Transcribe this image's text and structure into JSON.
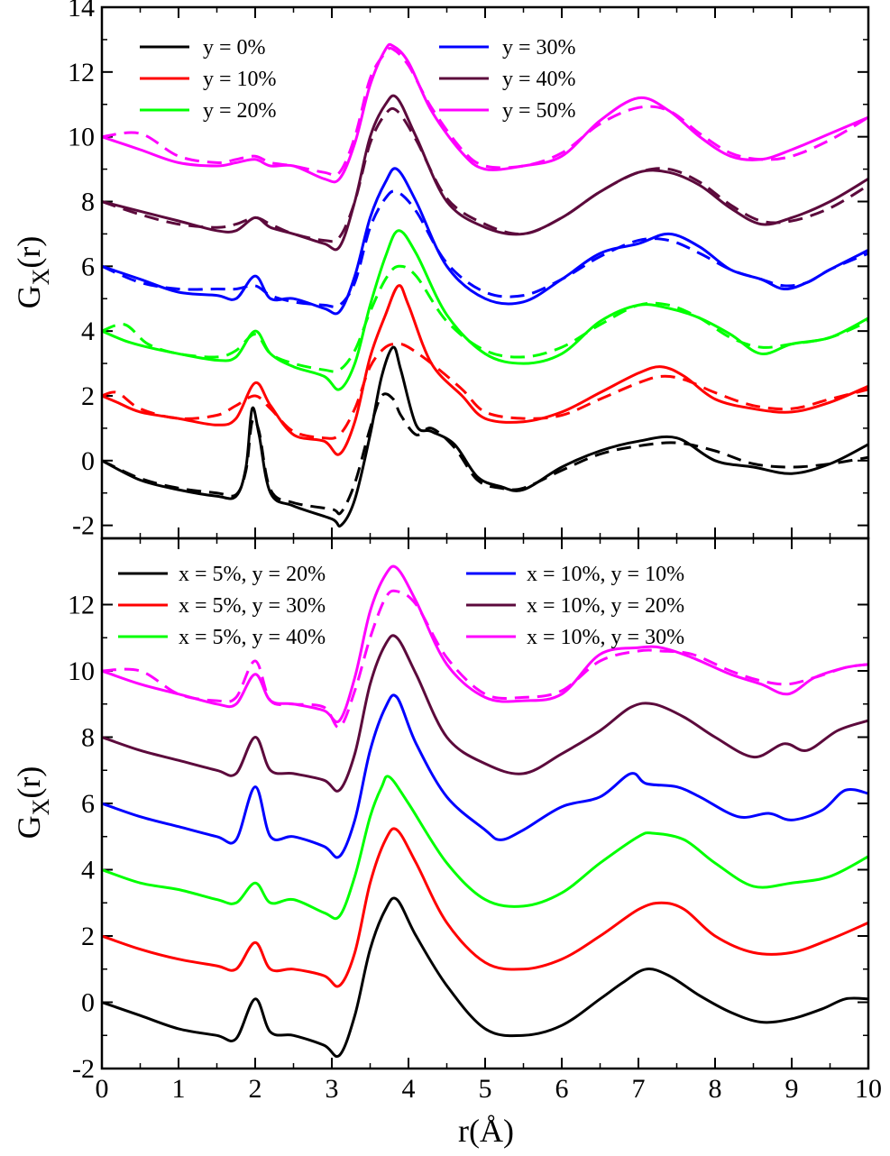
{
  "chart_data": [
    {
      "type": "line",
      "xlabel": "",
      "ylabel": "G_X(r)",
      "ylabel_main": "G",
      "ylabel_sub": "X",
      "ylabel_tail": "(r)",
      "xlim": [
        0,
        10
      ],
      "ylim": [
        -2.4,
        14
      ],
      "yticks": [
        "-2",
        "0",
        "2",
        "4",
        "6",
        "8",
        "10",
        "12",
        "14"
      ],
      "grid": false,
      "legend_position": "top",
      "line_styles": [
        "solid",
        "dashed"
      ],
      "series": [
        {
          "name": "y = 0%",
          "color": "#000000",
          "x": [
            0,
            0.5,
            1.0,
            1.5,
            1.75,
            1.88,
            1.96,
            2.05,
            2.2,
            2.5,
            3.0,
            3.12,
            3.3,
            3.5,
            3.65,
            3.8,
            3.9,
            4.1,
            4.3,
            4.6,
            4.9,
            5.2,
            5.5,
            6.0,
            6.5,
            7.0,
            7.5,
            8.0,
            8.5,
            9.0,
            9.5,
            10.0
          ],
          "y": [
            0,
            -0.6,
            -0.9,
            -1.1,
            -1.1,
            -0.2,
            1.6,
            0.8,
            -1.0,
            -1.4,
            -1.8,
            -2.0,
            -1.2,
            0.8,
            2.6,
            3.5,
            2.8,
            1.1,
            0.9,
            0.5,
            -0.5,
            -0.8,
            -0.9,
            -0.2,
            0.3,
            0.6,
            0.7,
            0.0,
            -0.2,
            -0.4,
            -0.1,
            0.5
          ],
          "fit_y": [
            0,
            -0.55,
            -0.85,
            -1.0,
            -1.05,
            -0.3,
            1.2,
            0.9,
            -0.9,
            -1.3,
            -1.5,
            -1.6,
            -0.7,
            1.0,
            2.0,
            1.9,
            1.4,
            0.8,
            1.0,
            0.4,
            -0.6,
            -0.85,
            -0.85,
            -0.3,
            0.2,
            0.45,
            0.55,
            0.3,
            -0.1,
            -0.2,
            -0.1,
            0.1
          ]
        },
        {
          "name": "y = 10%",
          "color": "#ff0000",
          "x": [
            0,
            0.2,
            0.5,
            1.0,
            1.5,
            1.75,
            2.0,
            2.2,
            2.5,
            2.9,
            3.1,
            3.3,
            3.5,
            3.7,
            3.87,
            4.0,
            4.3,
            4.7,
            5.0,
            5.5,
            6.0,
            6.5,
            7.0,
            7.3,
            7.6,
            8.0,
            8.5,
            9.0,
            9.5,
            10.0
          ],
          "y": [
            2.0,
            1.8,
            1.5,
            1.3,
            1.1,
            1.3,
            2.4,
            1.7,
            0.8,
            0.6,
            0.2,
            1.2,
            3.2,
            4.5,
            5.4,
            4.8,
            3.0,
            2.0,
            1.3,
            1.2,
            1.5,
            2.1,
            2.7,
            2.9,
            2.6,
            1.9,
            1.6,
            1.5,
            1.8,
            2.3
          ],
          "fit_y": [
            2.0,
            2.1,
            1.6,
            1.3,
            1.4,
            1.7,
            2.0,
            1.6,
            0.9,
            0.7,
            0.8,
            1.6,
            2.9,
            3.5,
            3.6,
            3.5,
            3.0,
            2.2,
            1.5,
            1.3,
            1.4,
            1.9,
            2.4,
            2.6,
            2.5,
            2.1,
            1.7,
            1.6,
            1.9,
            2.2
          ]
        },
        {
          "name": "y = 20%",
          "color": "#00ff00",
          "x": [
            0,
            0.3,
            0.6,
            1.0,
            1.5,
            1.75,
            2.0,
            2.2,
            2.5,
            2.9,
            3.1,
            3.3,
            3.5,
            3.7,
            3.87,
            4.1,
            4.5,
            5.0,
            5.5,
            6.0,
            6.5,
            7.0,
            7.4,
            7.8,
            8.2,
            8.6,
            9.0,
            9.5,
            10.0
          ],
          "y": [
            4.0,
            3.7,
            3.5,
            3.3,
            3.1,
            3.2,
            4.0,
            3.3,
            2.9,
            2.6,
            2.2,
            3.0,
            4.8,
            6.3,
            7.1,
            6.4,
            4.5,
            3.3,
            3.0,
            3.3,
            4.3,
            4.8,
            4.7,
            4.4,
            3.9,
            3.3,
            3.6,
            3.8,
            4.4
          ],
          "fit_y": [
            4.0,
            4.2,
            3.6,
            3.3,
            3.2,
            3.4,
            3.9,
            3.3,
            3.0,
            2.8,
            2.8,
            3.4,
            4.6,
            5.6,
            6.0,
            5.7,
            4.3,
            3.4,
            3.2,
            3.5,
            4.2,
            4.8,
            4.8,
            4.4,
            3.8,
            3.5,
            3.6,
            3.8,
            4.3
          ]
        },
        {
          "name": "y = 30%",
          "color": "#0000ff",
          "x": [
            0,
            0.5,
            1.0,
            1.5,
            1.75,
            2.0,
            2.2,
            2.5,
            2.9,
            3.1,
            3.3,
            3.5,
            3.7,
            3.85,
            4.1,
            4.5,
            5.0,
            5.5,
            6.0,
            6.5,
            7.0,
            7.4,
            7.8,
            8.2,
            8.6,
            8.9,
            9.2,
            9.5,
            10.0
          ],
          "y": [
            6.0,
            5.6,
            5.2,
            5.1,
            5.0,
            5.7,
            5.0,
            5.0,
            4.7,
            4.6,
            5.7,
            7.5,
            8.6,
            9.0,
            8.0,
            6.0,
            5.0,
            4.9,
            5.6,
            6.4,
            6.7,
            7.0,
            6.6,
            5.9,
            5.6,
            5.3,
            5.5,
            5.9,
            6.5
          ],
          "fit_y": [
            6.0,
            5.5,
            5.3,
            5.3,
            5.3,
            5.4,
            5.1,
            4.9,
            4.8,
            4.8,
            5.5,
            7.2,
            8.1,
            8.3,
            7.7,
            6.1,
            5.2,
            5.1,
            5.6,
            6.3,
            6.8,
            6.8,
            6.4,
            5.9,
            5.6,
            5.4,
            5.5,
            5.9,
            6.4
          ]
        },
        {
          "name": "y = 40%",
          "color": "#5c0a3c",
          "x": [
            0,
            0.5,
            1.0,
            1.5,
            1.75,
            2.0,
            2.2,
            2.5,
            2.9,
            3.1,
            3.3,
            3.5,
            3.7,
            3.85,
            4.1,
            4.5,
            5.0,
            5.5,
            6.0,
            6.5,
            7.0,
            7.4,
            7.8,
            8.2,
            8.6,
            9.0,
            9.5,
            10.0
          ],
          "y": [
            8.0,
            7.7,
            7.4,
            7.1,
            7.1,
            7.5,
            7.2,
            7.0,
            6.7,
            6.6,
            8.0,
            10.0,
            11.0,
            11.2,
            10.0,
            8.0,
            7.2,
            7.0,
            7.5,
            8.3,
            8.9,
            8.9,
            8.5,
            7.8,
            7.3,
            7.5,
            8.0,
            8.7
          ],
          "fit_y": [
            8.0,
            7.6,
            7.3,
            7.2,
            7.3,
            7.5,
            7.3,
            7.0,
            6.8,
            6.9,
            8.0,
            9.8,
            10.7,
            10.8,
            9.9,
            8.1,
            7.3,
            7.0,
            7.5,
            8.3,
            8.9,
            9.0,
            8.6,
            7.9,
            7.4,
            7.4,
            7.8,
            8.5
          ]
        },
        {
          "name": "y = 50%",
          "color": "#ff00ff",
          "x": [
            0,
            0.5,
            1.0,
            1.5,
            1.75,
            2.0,
            2.2,
            2.5,
            2.9,
            3.1,
            3.3,
            3.5,
            3.7,
            3.8,
            4.0,
            4.3,
            4.7,
            5.0,
            5.5,
            6.0,
            6.5,
            7.0,
            7.4,
            7.8,
            8.2,
            8.6,
            9.0,
            9.5,
            10.0
          ],
          "y": [
            10.0,
            9.6,
            9.2,
            9.1,
            9.2,
            9.3,
            9.1,
            9.1,
            8.7,
            8.7,
            9.8,
            11.6,
            12.7,
            12.8,
            12.3,
            10.8,
            9.5,
            9.0,
            9.1,
            9.4,
            10.5,
            11.2,
            10.8,
            10.0,
            9.4,
            9.3,
            9.6,
            10.1,
            10.6
          ],
          "fit_y": [
            10.0,
            10.1,
            9.4,
            9.2,
            9.3,
            9.4,
            9.2,
            9.1,
            8.9,
            8.9,
            10.0,
            11.8,
            12.6,
            12.7,
            12.2,
            10.9,
            9.6,
            9.1,
            9.1,
            9.5,
            10.4,
            10.9,
            10.8,
            10.1,
            9.5,
            9.3,
            9.4,
            9.9,
            10.6
          ]
        }
      ]
    },
    {
      "type": "line",
      "xlabel": "r(Å)",
      "ylabel": "G_X(r)",
      "ylabel_main": "G",
      "ylabel_sub": "X",
      "ylabel_tail": "(r)",
      "xlim": [
        0,
        10
      ],
      "ylim": [
        -2,
        14
      ],
      "yticks": [
        "-2",
        "0",
        "2",
        "4",
        "6",
        "8",
        "10",
        "12"
      ],
      "xticks": [
        "0",
        "1",
        "2",
        "3",
        "4",
        "5",
        "6",
        "7",
        "8",
        "9",
        "10"
      ],
      "grid": false,
      "legend_position": "top",
      "series": [
        {
          "name": "x = 5%, y = 20%",
          "color": "#000000",
          "x": [
            0,
            0.5,
            1.0,
            1.5,
            1.75,
            2.0,
            2.2,
            2.5,
            2.9,
            3.1,
            3.3,
            3.5,
            3.7,
            3.85,
            4.1,
            4.5,
            5.0,
            5.5,
            6.0,
            6.5,
            6.8,
            7.1,
            7.4,
            7.8,
            8.2,
            8.6,
            9.0,
            9.4,
            9.7,
            10.0
          ],
          "y": [
            0.0,
            -0.4,
            -0.8,
            -1.0,
            -1.1,
            0.1,
            -0.9,
            -1.0,
            -1.3,
            -1.6,
            -0.4,
            1.6,
            2.8,
            3.1,
            2.0,
            0.5,
            -0.8,
            -1.0,
            -0.7,
            0.1,
            0.6,
            1.0,
            0.8,
            0.2,
            -0.3,
            -0.6,
            -0.5,
            -0.2,
            0.1,
            0.1
          ]
        },
        {
          "name": "x = 5%, y = 30%",
          "color": "#ff0000",
          "x": [
            0,
            0.5,
            1.0,
            1.5,
            1.75,
            2.0,
            2.2,
            2.5,
            2.9,
            3.1,
            3.3,
            3.5,
            3.7,
            3.85,
            4.1,
            4.5,
            5.0,
            5.5,
            6.0,
            6.5,
            7.0,
            7.3,
            7.6,
            8.0,
            8.5,
            9.0,
            9.5,
            10.0
          ],
          "y": [
            2.0,
            1.6,
            1.3,
            1.1,
            1.0,
            1.8,
            1.0,
            1.0,
            0.8,
            0.5,
            1.5,
            3.6,
            4.9,
            5.2,
            4.2,
            2.4,
            1.2,
            1.0,
            1.3,
            2.0,
            2.8,
            3.0,
            2.8,
            2.0,
            1.5,
            1.5,
            1.9,
            2.4
          ]
        },
        {
          "name": "x = 5%, y = 40%",
          "color": "#00ff00",
          "x": [
            0,
            0.5,
            1.0,
            1.5,
            1.75,
            2.0,
            2.2,
            2.5,
            2.9,
            3.1,
            3.3,
            3.5,
            3.65,
            3.75,
            4.0,
            4.5,
            5.0,
            5.5,
            6.0,
            6.5,
            7.0,
            7.2,
            7.6,
            8.0,
            8.5,
            9.0,
            9.5,
            10.0
          ],
          "y": [
            4.0,
            3.6,
            3.4,
            3.1,
            3.0,
            3.6,
            3.0,
            3.1,
            2.7,
            2.6,
            3.8,
            5.6,
            6.5,
            6.8,
            6.0,
            4.2,
            3.1,
            2.9,
            3.3,
            4.2,
            5.0,
            5.1,
            4.9,
            4.2,
            3.5,
            3.6,
            3.8,
            4.4
          ]
        },
        {
          "name": "x = 10%, y = 10%",
          "color": "#0000ff",
          "x": [
            0,
            0.5,
            1.0,
            1.5,
            1.75,
            2.0,
            2.2,
            2.5,
            2.9,
            3.1,
            3.3,
            3.5,
            3.7,
            3.85,
            4.1,
            4.5,
            5.0,
            5.2,
            5.5,
            6.0,
            6.5,
            6.9,
            7.1,
            7.5,
            7.8,
            8.3,
            8.7,
            9.0,
            9.4,
            9.7,
            10.0
          ],
          "y": [
            6.0,
            5.6,
            5.3,
            5.0,
            4.9,
            6.5,
            5.0,
            5.0,
            4.7,
            4.4,
            5.5,
            7.6,
            8.9,
            9.2,
            7.8,
            6.2,
            5.2,
            4.9,
            5.2,
            5.9,
            6.2,
            6.9,
            6.6,
            6.5,
            6.2,
            5.6,
            5.7,
            5.5,
            5.8,
            6.4,
            6.3
          ]
        },
        {
          "name": "x = 10%, y = 20%",
          "color": "#5c0a3c",
          "x": [
            0,
            0.5,
            1.0,
            1.5,
            1.75,
            2.0,
            2.2,
            2.5,
            2.9,
            3.1,
            3.3,
            3.5,
            3.7,
            3.85,
            4.1,
            4.5,
            5.0,
            5.5,
            6.0,
            6.5,
            6.9,
            7.2,
            7.6,
            8.0,
            8.5,
            8.9,
            9.2,
            9.6,
            10.0
          ],
          "y": [
            8.0,
            7.6,
            7.3,
            7.0,
            6.9,
            8.0,
            7.0,
            6.9,
            6.7,
            6.4,
            7.5,
            9.6,
            10.8,
            11.0,
            9.9,
            8.0,
            7.2,
            6.9,
            7.5,
            8.2,
            8.9,
            9.0,
            8.6,
            8.0,
            7.4,
            7.8,
            7.6,
            8.2,
            8.5
          ]
        },
        {
          "name": "x = 10%, y = 30%",
          "color": "#ff00ff",
          "x": [
            0,
            0.5,
            1.0,
            1.5,
            1.75,
            2.0,
            2.2,
            2.5,
            2.9,
            3.1,
            3.3,
            3.5,
            3.7,
            3.85,
            4.1,
            4.5,
            5.0,
            5.5,
            6.0,
            6.5,
            7.0,
            7.3,
            7.7,
            8.2,
            8.6,
            8.95,
            9.3,
            9.7,
            10.0
          ],
          "y": [
            10.0,
            9.6,
            9.3,
            9.0,
            9.0,
            9.9,
            9.1,
            9.0,
            8.8,
            8.5,
            9.8,
            11.8,
            12.9,
            13.1,
            12.1,
            10.2,
            9.2,
            9.1,
            9.3,
            10.5,
            10.7,
            10.7,
            10.4,
            9.9,
            9.6,
            9.3,
            9.8,
            10.1,
            10.2
          ],
          "fit_y": [
            10.0,
            10.0,
            9.3,
            9.1,
            9.2,
            10.3,
            9.1,
            9.0,
            8.9,
            8.3,
            9.4,
            11.0,
            12.2,
            12.4,
            12.0,
            10.4,
            9.3,
            9.2,
            9.4,
            10.3,
            10.6,
            10.6,
            10.5,
            10.0,
            9.7,
            9.6,
            9.8,
            10.1,
            10.2
          ]
        }
      ]
    }
  ]
}
